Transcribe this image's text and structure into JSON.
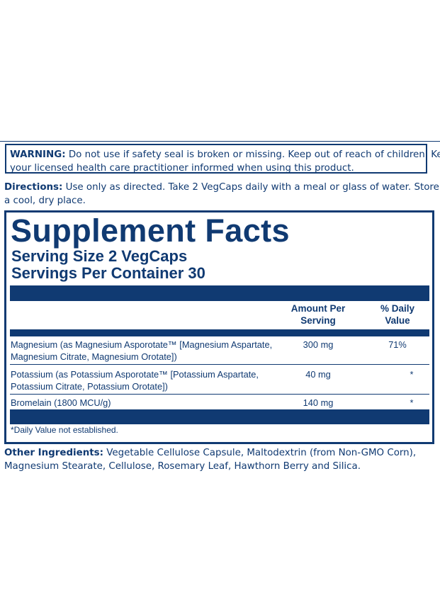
{
  "warning": {
    "label": "WARNING:",
    "line1": " Do not use if safety seal is broken or missing. Keep out of reach of children. Keep",
    "line2": "your licensed health care practitioner informed when using this product."
  },
  "directions": {
    "label": "Directions:",
    "line1": " Use only as directed. Take 2 VegCaps daily with a meal or glass of water. Store in",
    "line2": "a cool, dry place."
  },
  "facts": {
    "title": "Supplement Facts",
    "serving_size": "Serving Size 2 VegCaps",
    "servings_per_container": "Servings Per Container 30",
    "col_amount": [
      "Amount Per",
      "Serving"
    ],
    "col_dv": [
      "% Daily",
      "Value"
    ],
    "rows": [
      {
        "name": [
          "Magnesium (as Magnesium Asporotate™ [Magnesium Aspartate,",
          "Magnesium Citrate, Magnesium Orotate])"
        ],
        "amount": "300 mg",
        "dv": "71%"
      },
      {
        "name": [
          "Potassium  (as Potassium Asporotate™ [Potassium Aspartate,",
          "Potassium Citrate, Potassium Orotate])"
        ],
        "amount": "40 mg",
        "dv": "*"
      },
      {
        "name": [
          "Bromelain (1800 MCU/g)"
        ],
        "amount": "140 mg",
        "dv": "*"
      }
    ],
    "footnote": "*Daily Value not established."
  },
  "other_ingredients": {
    "label": "Other Ingredients:",
    "line1": " Vegetable Cellulose Capsule, Maltodextrin (from Non-GMO Corn),",
    "line2": "Magnesium Stearate, Cellulose, Rosemary Leaf, Hawthorn Berry and Silica."
  },
  "colors": {
    "ink": "#103a72",
    "background": "#ffffff"
  }
}
